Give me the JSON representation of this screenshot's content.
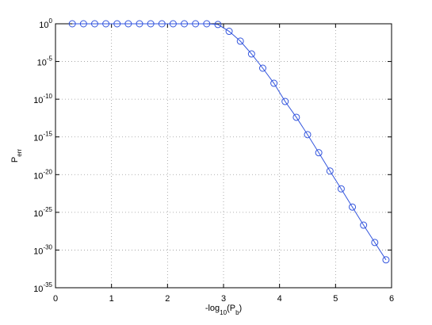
{
  "chart_data": {
    "type": "line",
    "log_y": true,
    "grid": true,
    "marker": "circle",
    "xlabel": [
      {
        "text": "-log"
      },
      {
        "text": "10",
        "sub": true
      },
      {
        "text": "(P"
      },
      {
        "text": "b",
        "sub": true
      },
      {
        "text": ")"
      }
    ],
    "ylabel": [
      {
        "text": "P"
      },
      {
        "text": "err",
        "sub": true
      }
    ],
    "x": [
      0.3,
      0.5,
      0.7,
      0.9,
      1.1,
      1.3,
      1.5,
      1.7,
      1.9,
      2.1,
      2.3,
      2.5,
      2.7,
      2.9,
      3.1,
      3.3,
      3.5,
      3.7,
      3.9,
      4.1,
      4.3,
      4.5,
      4.7,
      4.9,
      5.1,
      5.3,
      5.5,
      5.7,
      5.9
    ],
    "series": [
      {
        "color": "#3355dd",
        "values": [
          1,
          1,
          1,
          1,
          1,
          1,
          1,
          1,
          1,
          1,
          1,
          1,
          1,
          0.8,
          0.1,
          0.005,
          0.0001,
          1.3e-06,
          1.3e-08,
          5e-11,
          4e-13,
          2e-15,
          8e-18,
          3e-20,
          1.3e-22,
          5e-25,
          2e-27,
          1e-29,
          5e-32
        ]
      }
    ],
    "xlim": [
      0,
      6
    ],
    "xticks": [
      0,
      1,
      2,
      3,
      4,
      5,
      6
    ],
    "ylim": [
      1e-35,
      1
    ],
    "yticks": [
      {
        "value": 1e-35,
        "label": "10",
        "exponent": "-35"
      },
      {
        "value": 1e-30,
        "label": "10",
        "exponent": "-30"
      },
      {
        "value": 1e-25,
        "label": "10",
        "exponent": "-25"
      },
      {
        "value": 1e-20,
        "label": "10",
        "exponent": "-20"
      },
      {
        "value": 1e-15,
        "label": "10",
        "exponent": "-15"
      },
      {
        "value": 1e-10,
        "label": "10",
        "exponent": "-10"
      },
      {
        "value": 1e-05,
        "label": "10",
        "exponent": "-5"
      },
      {
        "value": 1,
        "label": "10",
        "exponent": "0"
      }
    ]
  }
}
